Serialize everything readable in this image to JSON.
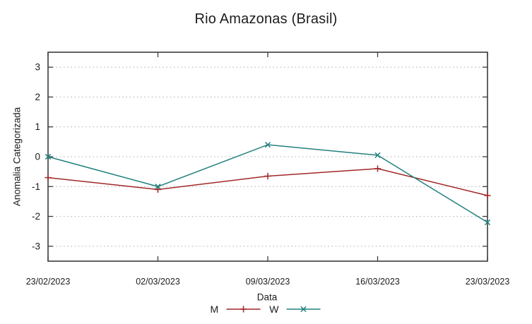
{
  "chart_data": {
    "type": "line",
    "title": "Rio Amazonas (Brasil)",
    "xlabel": "Data",
    "ylabel": "Anomalia Categorizada",
    "categories": [
      "23/02/2023",
      "02/03/2023",
      "09/03/2023",
      "16/03/2023",
      "23/03/2023"
    ],
    "series": [
      {
        "name": "M",
        "color": "#a12727",
        "marker": "plus",
        "values": [
          -0.7,
          -1.1,
          -0.65,
          -0.4,
          -1.3
        ]
      },
      {
        "name": "W",
        "color": "#22807e",
        "marker": "cross",
        "values": [
          0.0,
          -1.0,
          0.4,
          0.05,
          -2.2
        ]
      }
    ],
    "ylim": [
      -3.5,
      3.5
    ],
    "yticks": [
      -3,
      -2,
      -1,
      0,
      1,
      2,
      3
    ],
    "grid": true,
    "legend_position": "bottom-center",
    "axis_color": "#3c3c3c",
    "grid_color": "#b8b8b8"
  }
}
